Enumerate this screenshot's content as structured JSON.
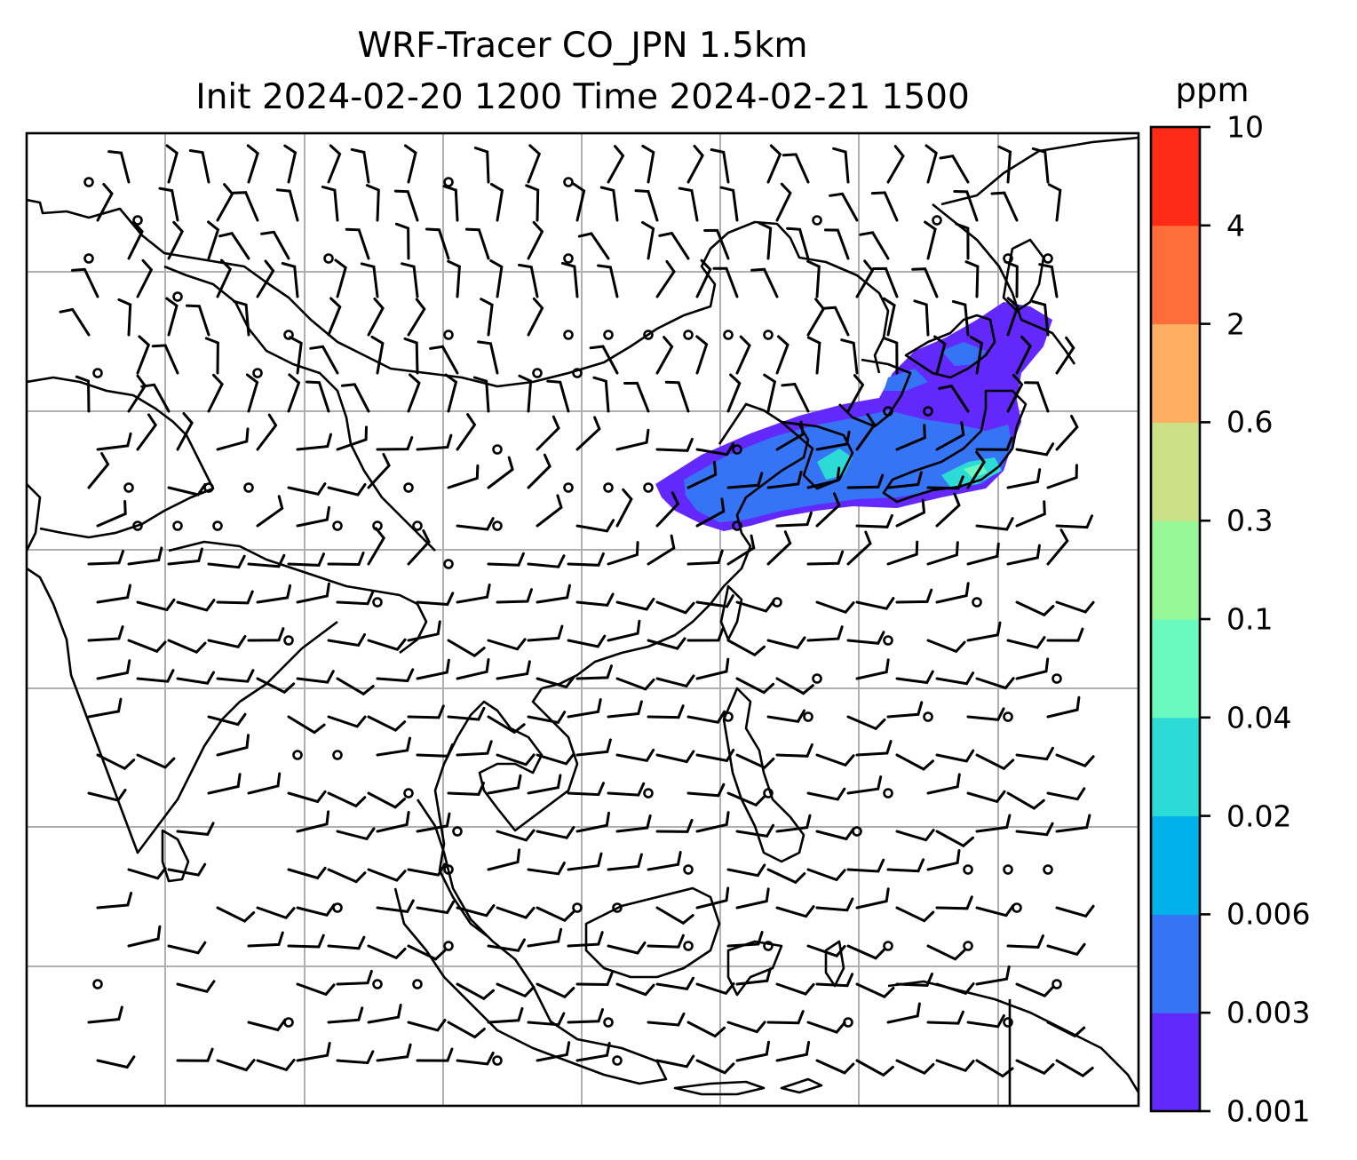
{
  "title": {
    "line1": "WRF-Tracer CO_JPN 1.5km",
    "line2": "Init 2024-02-20 1200 Time 2024-02-21 1500"
  },
  "colorbar": {
    "unit": "ppm",
    "levels": [
      "0.001",
      "0.003",
      "0.006",
      "0.02",
      "0.04",
      "0.1",
      "0.3",
      "0.6",
      "2",
      "4",
      "10"
    ],
    "colors": [
      "#6328fc",
      "#3574f5",
      "#03b1ea",
      "#2ddbd6",
      "#6afac0",
      "#98f898",
      "#cbe187",
      "#ffae62",
      "#ff6e3a",
      "#ff2b16"
    ]
  },
  "map": {
    "gridlines": true,
    "overlays": [
      "coastlines",
      "country-borders",
      "wind-barbs",
      "calm-circles"
    ],
    "tracer_plume_colors": [
      "#6328fc",
      "#3574f5",
      "#2ddbd6",
      "#6afac0"
    ]
  }
}
